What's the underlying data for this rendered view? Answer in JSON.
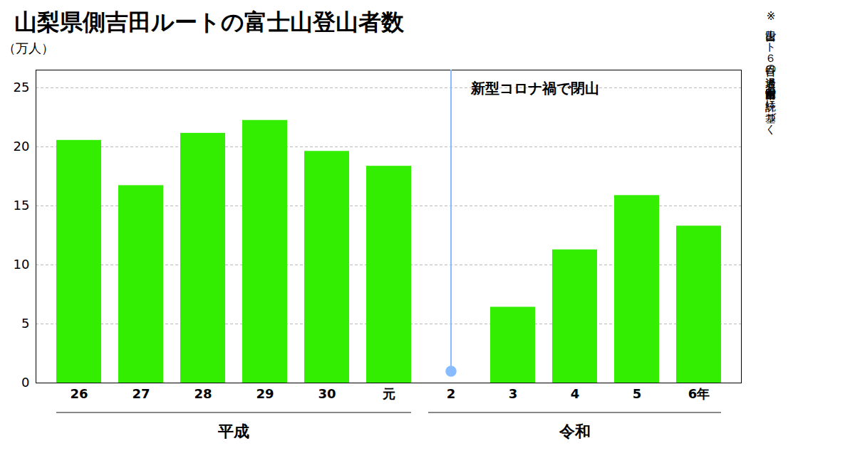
{
  "chart_data": {
    "type": "bar",
    "title": "山梨県側吉田ルートの富士山登山者数",
    "ylabel": "（万人）",
    "note": "※吉田ルート６合目の通過者。山梨県富士吉田市の統計に基づく",
    "categories": [
      "26",
      "27",
      "28",
      "29",
      "30",
      "元",
      "2",
      "3",
      "4",
      "5",
      "6年"
    ],
    "values": [
      20.55,
      16.72,
      21.15,
      22.24,
      19.62,
      18.36,
      0.0,
      6.42,
      11.28,
      15.88,
      13.29
    ],
    "color": "#33ee00",
    "annotations": [
      {
        "text": "新型コロナ禍で閉山",
        "category": "2",
        "value": 1.0,
        "marker": "circle",
        "color": "#88bbff"
      }
    ],
    "groups": [
      {
        "label": "平成",
        "categories": [
          "26",
          "27",
          "28",
          "29",
          "30",
          "元"
        ]
      },
      {
        "label": "令和",
        "categories": [
          "2",
          "3",
          "4",
          "5",
          "6年"
        ]
      }
    ],
    "ylim": [
      0,
      26.5
    ],
    "yticks": [
      0,
      5,
      10,
      15,
      20,
      25
    ],
    "grid": true
  }
}
